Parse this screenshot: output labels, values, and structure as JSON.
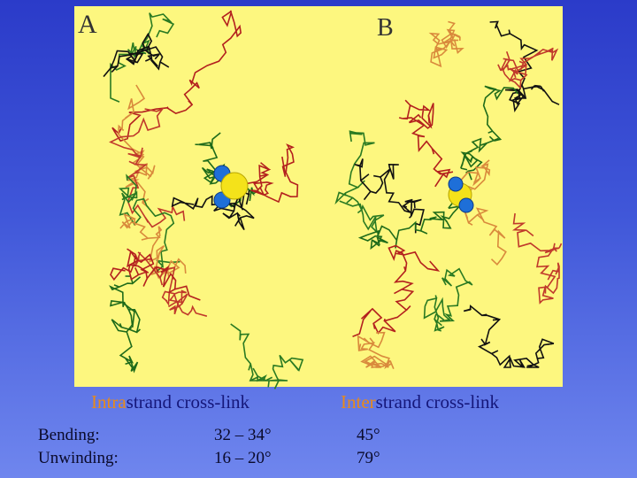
{
  "panels": [
    {
      "label": "A",
      "caption": {
        "highlight": "Intra",
        "rest": "strand cross-link"
      }
    },
    {
      "label": "B",
      "caption": {
        "highlight": "Inter",
        "rest": "strand cross-link"
      }
    }
  ],
  "table": {
    "rows": [
      [
        "Bending:",
        "32 – 34°",
        "45°"
      ],
      [
        "Unwinding:",
        "16 – 20°",
        "79°"
      ]
    ]
  }
}
